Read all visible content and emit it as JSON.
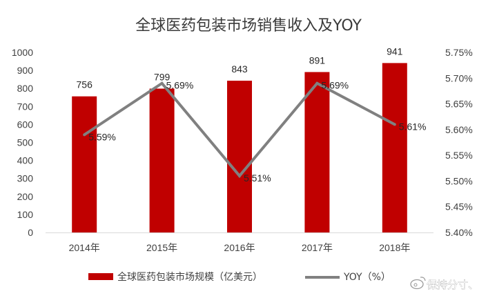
{
  "chart_data": {
    "type": "bar",
    "title": "全球医药包装市场销售收入及YOY",
    "categories": [
      "2014年",
      "2015年",
      "2016年",
      "2017年",
      "2018年"
    ],
    "series": [
      {
        "name": "全球医药包装市场规模（亿美元）",
        "type": "bar",
        "axis": "left",
        "values": [
          756,
          799,
          843,
          891,
          941
        ],
        "labels": [
          "756",
          "799",
          "843",
          "891",
          "941"
        ],
        "color": "#c00000"
      },
      {
        "name": "YOY（%）",
        "type": "line",
        "axis": "right",
        "values": [
          5.59,
          5.69,
          5.51,
          5.69,
          5.61
        ],
        "labels": [
          "5.59%",
          "5.69%",
          "5.51%",
          "5.69%",
          "5.61%"
        ],
        "color": "#808080"
      }
    ],
    "y_left": {
      "min": 0,
      "max": 1000,
      "ticks": [
        0,
        100,
        200,
        300,
        400,
        500,
        600,
        700,
        800,
        900,
        1000
      ],
      "tick_labels": [
        "0",
        "100",
        "200",
        "300",
        "400",
        "500",
        "600",
        "700",
        "800",
        "900",
        "1000"
      ]
    },
    "y_right": {
      "min": 5.4,
      "max": 5.75,
      "ticks": [
        5.4,
        5.45,
        5.5,
        5.55,
        5.6,
        5.65,
        5.7,
        5.75
      ],
      "tick_labels": [
        "5.40%",
        "5.45%",
        "5.50%",
        "5.55%",
        "5.60%",
        "5.65%",
        "5.70%",
        "5.75%"
      ]
    },
    "grid": false,
    "legend": "bottom"
  },
  "watermark": {
    "text": "保持分寸、",
    "icon": "weibo-logo-icon"
  }
}
